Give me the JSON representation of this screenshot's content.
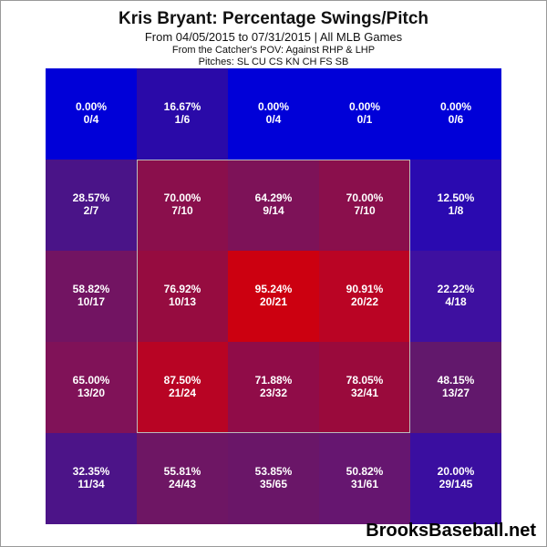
{
  "chart_data": {
    "type": "heatmap",
    "title": "Kris Bryant: Percentage Swings/Pitch",
    "subtitle": "From 04/05/2015 to 07/31/2015 | All MLB Games",
    "pov_line": "From the Catcher's POV:   Against RHP & LHP",
    "pitches_line": "Pitches:  SL  CU  CS  KN  CH  FS  SB",
    "rows": [
      [
        {
          "pct": "0.00%",
          "count": "0/4",
          "value": 0.0,
          "color": "#0000d8"
        },
        {
          "pct": "16.67%",
          "count": "1/6",
          "value": 16.67,
          "color": "#2a0aa8"
        },
        {
          "pct": "0.00%",
          "count": "0/4",
          "value": 0.0,
          "color": "#0000d8"
        },
        {
          "pct": "0.00%",
          "count": "0/1",
          "value": 0.0,
          "color": "#0000d8"
        },
        {
          "pct": "0.00%",
          "count": "0/6",
          "value": 0.0,
          "color": "#0000d8"
        }
      ],
      [
        {
          "pct": "28.57%",
          "count": "2/7",
          "value": 28.57,
          "color": "#4a1488"
        },
        {
          "pct": "70.00%",
          "count": "7/10",
          "value": 70.0,
          "color": "#8a0f4c"
        },
        {
          "pct": "64.29%",
          "count": "9/14",
          "value": 64.29,
          "color": "#7d1258"
        },
        {
          "pct": "70.00%",
          "count": "7/10",
          "value": 70.0,
          "color": "#8a0f4c"
        },
        {
          "pct": "12.50%",
          "count": "1/8",
          "value": 12.5,
          "color": "#2a0ab0"
        }
      ],
      [
        {
          "pct": "58.82%",
          "count": "10/17",
          "value": 58.82,
          "color": "#721462"
        },
        {
          "pct": "76.92%",
          "count": "10/13",
          "value": 76.92,
          "color": "#960c40"
        },
        {
          "pct": "95.24%",
          "count": "20/21",
          "value": 95.24,
          "color": "#cc0010"
        },
        {
          "pct": "90.91%",
          "count": "20/22",
          "value": 90.91,
          "color": "#ba0424"
        },
        {
          "pct": "22.22%",
          "count": "4/18",
          "value": 22.22,
          "color": "#3e10a0"
        }
      ],
      [
        {
          "pct": "65.00%",
          "count": "13/20",
          "value": 65.0,
          "color": "#801258"
        },
        {
          "pct": "87.50%",
          "count": "21/24",
          "value": 87.5,
          "color": "#b80424"
        },
        {
          "pct": "71.88%",
          "count": "23/32",
          "value": 71.88,
          "color": "#900c48"
        },
        {
          "pct": "78.05%",
          "count": "32/41",
          "value": 78.05,
          "color": "#9a0a3c"
        },
        {
          "pct": "48.15%",
          "count": "13/27",
          "value": 48.15,
          "color": "#62186c"
        }
      ],
      [
        {
          "pct": "32.35%",
          "count": "11/34",
          "value": 32.35,
          "color": "#4c1488"
        },
        {
          "pct": "55.81%",
          "count": "24/43",
          "value": 55.81,
          "color": "#6e1664"
        },
        {
          "pct": "53.85%",
          "count": "35/65",
          "value": 53.85,
          "color": "#6a1668"
        },
        {
          "pct": "50.82%",
          "count": "31/61",
          "value": 50.82,
          "color": "#661670"
        },
        {
          "pct": "20.00%",
          "count": "29/145",
          "value": 20.0,
          "color": "#3a0ea0"
        }
      ]
    ],
    "strike_zone": {
      "rows": [
        1,
        3
      ],
      "cols": [
        1,
        3
      ],
      "outline_color": "#bbbbbb"
    }
  },
  "watermark": "BrooksBaseball.net"
}
